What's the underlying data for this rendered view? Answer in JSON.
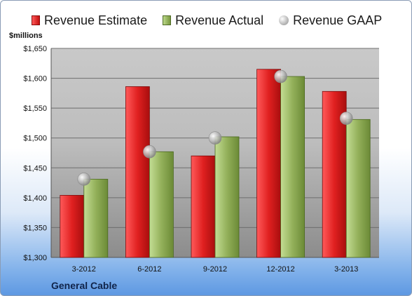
{
  "chart_data": {
    "type": "bar",
    "categories": [
      "3-2012",
      "6-2012",
      "9-2012",
      "12-2012",
      "3-2013"
    ],
    "series": [
      {
        "name": "Revenue Estimate",
        "type": "bar",
        "color": "#d42121",
        "values": [
          1404,
          1586,
          1470,
          1615,
          1578
        ]
      },
      {
        "name": "Revenue Actual",
        "type": "bar",
        "color": "#8eab52",
        "values": [
          1431,
          1477,
          1502,
          1603,
          1531
        ]
      },
      {
        "name": "Revenue GAAP",
        "type": "scatter",
        "color": "#c0c0c0",
        "values": [
          1431,
          1477,
          1500,
          1603,
          1533
        ]
      }
    ],
    "ylabel": "$millions",
    "ylim": [
      1300,
      1650
    ],
    "yticks": [
      1300,
      1350,
      1400,
      1450,
      1500,
      1550,
      1600,
      1650
    ],
    "ytick_labels": [
      "$1,300",
      "$1,350",
      "$1,400",
      "$1,450",
      "$1,500",
      "$1,550",
      "$1,600",
      "$1,650"
    ],
    "grid": true,
    "legend_position": "top"
  },
  "footer": {
    "company": "General Cable"
  }
}
